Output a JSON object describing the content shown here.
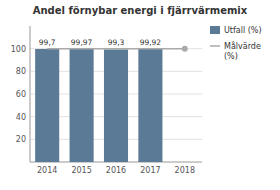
{
  "chart_data": {
    "type": "bar",
    "title": "Andel förnybar energi i fjärrvärmemix",
    "categories": [
      "2014",
      "2015",
      "2016",
      "2017",
      "2018"
    ],
    "series": [
      {
        "name": "Utfall (%)",
        "type": "bar",
        "color": "#5b7a96",
        "values": [
          99.7,
          99.97,
          99.3,
          99.92,
          null
        ],
        "value_labels": [
          "99,7",
          "99,97",
          "99,3",
          "99,92",
          null
        ],
        "data_labels": true
      },
      {
        "name": "Målvärde\n(%)",
        "type": "line",
        "color": "#aaaaaa",
        "values": [
          100,
          100,
          100,
          100,
          100
        ]
      }
    ],
    "ylim": [
      0,
      120
    ],
    "yticks": [
      20,
      40,
      60,
      80,
      100
    ],
    "grid": true,
    "legend": "right"
  }
}
